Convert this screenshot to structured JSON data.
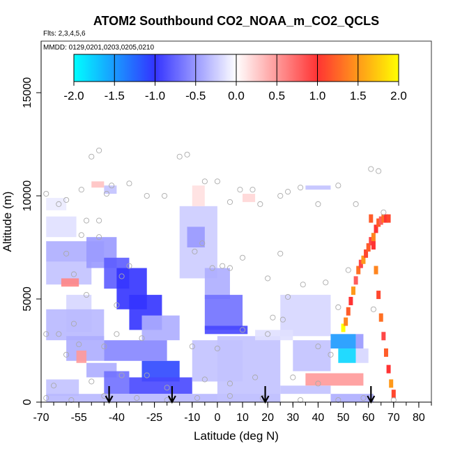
{
  "chart_data": {
    "type": "heatmap",
    "title": "ATOM2 Southbound CO2_NOAA_m_CO2_QCLS",
    "flights_label": "Flts: 2,3,4,5,6",
    "dates_label": "MMDD: 0129,0201,0203,0205,0210",
    "xlabel": "Latitude (deg N)",
    "ylabel": "Altitude (m)",
    "xlim": [
      -70,
      85
    ],
    "ylim": [
      0,
      17500
    ],
    "x_ticks": [
      -70,
      -55,
      -40,
      -25,
      -10,
      0,
      10,
      20,
      30,
      40,
      50,
      60,
      70,
      80
    ],
    "x_tick_labels": [
      "-70",
      "-55",
      "-40",
      "-25",
      "-10",
      "0",
      "10",
      "20",
      "30",
      "40",
      "50",
      "60",
      "70",
      "80"
    ],
    "y_ticks": [
      0,
      5000,
      10000,
      15000
    ],
    "y_tick_labels": [
      "0",
      "5000",
      "10000",
      "15000"
    ],
    "colorbar": {
      "range": [
        -2.0,
        2.0
      ],
      "tick_labels": [
        "-2.0",
        "-1.5",
        "-1.0",
        "-0.5",
        "0.0",
        "0.5",
        "1.0",
        "1.5",
        "2.0"
      ],
      "tick_values": [
        -2.0,
        -1.5,
        -1.0,
        -0.5,
        0.0,
        0.5,
        1.0,
        1.5,
        2.0
      ],
      "colors": [
        "#00ffff",
        "#3333ff",
        "#ffffff",
        "#ff3333",
        "#ffff00"
      ]
    },
    "arrow_latitudes": [
      -43,
      -18,
      19,
      61
    ],
    "cells": [
      {
        "lat": [
          -68,
          -45
        ],
        "alt": [
          6800,
          7800
        ],
        "value": -0.4
      },
      {
        "lat": [
          -68,
          -50
        ],
        "alt": [
          5700,
          6800
        ],
        "value": -0.3
      },
      {
        "lat": [
          -62,
          -55
        ],
        "alt": [
          5600,
          6000
        ],
        "value": 0.6
      },
      {
        "lat": [
          -68,
          -56
        ],
        "alt": [
          8000,
          9000
        ],
        "value": -0.15
      },
      {
        "lat": [
          -60,
          -50
        ],
        "alt": [
          3400,
          5200
        ],
        "value": -0.2
      },
      {
        "lat": [
          -52,
          -40
        ],
        "alt": [
          6500,
          8000
        ],
        "value": -0.5
      },
      {
        "lat": [
          -45,
          -35
        ],
        "alt": [
          5500,
          7000
        ],
        "value": -0.8
      },
      {
        "lat": [
          -40,
          -28
        ],
        "alt": [
          4500,
          6500
        ],
        "value": -1.0
      },
      {
        "lat": [
          -35,
          -22
        ],
        "alt": [
          3500,
          5200
        ],
        "value": -1.0
      },
      {
        "lat": [
          -30,
          -15
        ],
        "alt": [
          3000,
          4200
        ],
        "value": -0.4
      },
      {
        "lat": [
          -68,
          -45
        ],
        "alt": [
          3000,
          4500
        ],
        "value": -0.35
      },
      {
        "lat": [
          -60,
          -45
        ],
        "alt": [
          2000,
          3200
        ],
        "value": -0.4
      },
      {
        "lat": [
          -56,
          -52
        ],
        "alt": [
          1900,
          2500
        ],
        "value": 0.5
      },
      {
        "lat": [
          -52,
          -40
        ],
        "alt": [
          1200,
          1900
        ],
        "value": -0.4
      },
      {
        "lat": [
          -45,
          -20
        ],
        "alt": [
          2000,
          3000
        ],
        "value": -0.6
      },
      {
        "lat": [
          -30,
          -15
        ],
        "alt": [
          1000,
          2000
        ],
        "value": -1.1
      },
      {
        "lat": [
          -45,
          -35
        ],
        "alt": [
          400,
          1500
        ],
        "value": -0.7
      },
      {
        "lat": [
          -35,
          -10
        ],
        "alt": [
          400,
          1200
        ],
        "value": -0.9
      },
      {
        "lat": [
          -68,
          -55
        ],
        "alt": [
          300,
          1100
        ],
        "value": -0.3
      },
      {
        "lat": [
          -68,
          25
        ],
        "alt": [
          0,
          400
        ],
        "value": -0.35
      },
      {
        "lat": [
          -10,
          10
        ],
        "alt": [
          1000,
          3000
        ],
        "value": -0.3
      },
      {
        "lat": [
          -15,
          0
        ],
        "alt": [
          6000,
          9500
        ],
        "value": -0.25
      },
      {
        "lat": [
          -12,
          -5
        ],
        "alt": [
          7500,
          8500
        ],
        "value": -0.5
      },
      {
        "lat": [
          -5,
          5
        ],
        "alt": [
          5000,
          6500
        ],
        "value": -0.4
      },
      {
        "lat": [
          -5,
          10
        ],
        "alt": [
          3500,
          5200
        ],
        "value": -0.7
      },
      {
        "lat": [
          -5,
          12
        ],
        "alt": [
          3300,
          3700
        ],
        "value": -0.9
      },
      {
        "lat": [
          0,
          25
        ],
        "alt": [
          0,
          3200
        ],
        "value": -0.3
      },
      {
        "lat": [
          25,
          45
        ],
        "alt": [
          3200,
          5200
        ],
        "value": -0.2
      },
      {
        "lat": [
          15,
          30
        ],
        "alt": [
          3000,
          3500
        ],
        "value": -0.15
      },
      {
        "lat": [
          30,
          45
        ],
        "alt": [
          1500,
          3000
        ],
        "value": -0.3
      },
      {
        "lat": [
          45,
          55
        ],
        "alt": [
          2600,
          3300
        ],
        "value": -1.5
      },
      {
        "lat": [
          55,
          58
        ],
        "alt": [
          2600,
          3300
        ],
        "value": -0.5
      },
      {
        "lat": [
          48,
          55
        ],
        "alt": [
          1900,
          2600
        ],
        "value": -1.8
      },
      {
        "lat": [
          55,
          60
        ],
        "alt": [
          1900,
          2600
        ],
        "value": -0.2
      },
      {
        "lat": [
          35,
          58
        ],
        "alt": [
          800,
          1400
        ],
        "value": 0.5
      },
      {
        "lat": [
          25,
          45
        ],
        "alt": [
          400,
          800
        ],
        "value": -0.3
      },
      {
        "lat": [
          45,
          62
        ],
        "alt": [
          0,
          400
        ],
        "value": -0.4
      },
      {
        "lat": [
          35,
          45
        ],
        "alt": [
          10300,
          10500
        ],
        "value": -0.3
      },
      {
        "lat": [
          -68,
          -60
        ],
        "alt": [
          9300,
          9900
        ],
        "value": -0.1
      },
      {
        "lat": [
          -45,
          -40
        ],
        "alt": [
          10100,
          10500
        ],
        "value": -0.3
      },
      {
        "lat": [
          -10,
          -5
        ],
        "alt": [
          9500,
          10500
        ],
        "value": 0.15
      },
      {
        "lat": [
          -50,
          -45
        ],
        "alt": [
          10400,
          10700
        ],
        "value": 0.3
      },
      {
        "lat": [
          10,
          15
        ],
        "alt": [
          9700,
          10100
        ],
        "value": 0.2
      }
    ],
    "flight_track": {
      "lat": [
        50,
        51,
        52,
        53,
        54,
        55,
        56,
        57,
        58,
        59,
        60,
        61,
        62,
        63,
        64,
        65,
        66,
        67,
        68
      ],
      "alt": [
        3600,
        3900,
        4400,
        4900,
        5400,
        5900,
        6400,
        6700,
        6900,
        7200,
        7500,
        7800,
        8000,
        8400,
        8700,
        8800,
        8900,
        8900,
        8900
      ],
      "value": [
        2.0,
        1.4,
        1.2,
        1.0,
        1.5,
        0.8,
        1.3,
        0.9,
        1.5,
        1.1,
        1.2,
        0.9,
        1.4,
        1.0,
        1.2,
        0.8,
        1.3,
        1.0,
        1.1
      ]
    },
    "descent_track": {
      "lat": [
        61,
        62,
        63,
        64,
        65,
        66,
        67,
        68,
        69,
        70
      ],
      "alt": [
        8900,
        7600,
        6400,
        5200,
        4100,
        3200,
        2400,
        1600,
        900,
        400
      ],
      "value": [
        1.2,
        1.0,
        1.4,
        1.1,
        1.3,
        0.9,
        1.2,
        1.0,
        1.5,
        1.1
      ]
    },
    "sample_points": [
      [
        -68,
        10100
      ],
      [
        -63,
        9600
      ],
      [
        -60,
        9800
      ],
      [
        -54,
        10300
      ],
      [
        -47,
        12200
      ],
      [
        -50,
        11900
      ],
      [
        -42,
        10500
      ],
      [
        -44,
        10100
      ],
      [
        -35,
        10600
      ],
      [
        -28,
        10000
      ],
      [
        -21,
        10000
      ],
      [
        -15,
        11900
      ],
      [
        -12,
        12000
      ],
      [
        -5,
        10700
      ],
      [
        0,
        10700
      ],
      [
        9,
        10300
      ],
      [
        5,
        9700
      ],
      [
        14,
        10300
      ],
      [
        17,
        9600
      ],
      [
        25,
        10000
      ],
      [
        28,
        10200
      ],
      [
        33,
        10400
      ],
      [
        40,
        9600
      ],
      [
        48,
        10500
      ],
      [
        55,
        9600
      ],
      [
        61,
        11300
      ],
      [
        64,
        11200
      ],
      [
        66,
        9200
      ],
      [
        -52,
        8800
      ],
      [
        -47,
        8800
      ],
      [
        -54,
        8100
      ],
      [
        -47,
        8000
      ],
      [
        -60,
        7200
      ],
      [
        -35,
        6600
      ],
      [
        -38,
        6100
      ],
      [
        -40,
        4700
      ],
      [
        -57,
        6200
      ],
      [
        -52,
        5200
      ],
      [
        -6,
        7700
      ],
      [
        -9,
        7300
      ],
      [
        -2,
        6500
      ],
      [
        2,
        6600
      ],
      [
        5,
        6500
      ],
      [
        10,
        7000
      ],
      [
        20,
        6000
      ],
      [
        25,
        7200
      ],
      [
        28,
        5100
      ],
      [
        34,
        5700
      ],
      [
        43,
        5800
      ],
      [
        52,
        6400
      ],
      [
        62,
        4500
      ],
      [
        48,
        4600
      ],
      [
        -68,
        3300
      ],
      [
        -63,
        3300
      ],
      [
        -57,
        3800
      ],
      [
        -60,
        2300
      ],
      [
        -55,
        2800
      ],
      [
        -45,
        2700
      ],
      [
        -40,
        3300
      ],
      [
        -30,
        3100
      ],
      [
        -10,
        2700
      ],
      [
        0,
        2600
      ],
      [
        10,
        3500
      ],
      [
        20,
        3300
      ],
      [
        22,
        4100
      ],
      [
        26,
        4000
      ],
      [
        40,
        2700
      ],
      [
        45,
        2300
      ],
      [
        -65,
        800
      ],
      [
        -50,
        1000
      ],
      [
        -38,
        1300
      ],
      [
        -28,
        1300
      ],
      [
        -20,
        700
      ],
      [
        -5,
        1100
      ],
      [
        5,
        900
      ],
      [
        15,
        1200
      ],
      [
        30,
        1200
      ],
      [
        40,
        900
      ],
      [
        -68,
        200
      ],
      [
        -58,
        100
      ],
      [
        -45,
        300
      ],
      [
        -32,
        200
      ],
      [
        -20,
        100
      ],
      [
        -8,
        200
      ],
      [
        5,
        300
      ],
      [
        18,
        200
      ],
      [
        33,
        100
      ],
      [
        48,
        100
      ],
      [
        58,
        200
      ],
      [
        70,
        100
      ]
    ]
  }
}
